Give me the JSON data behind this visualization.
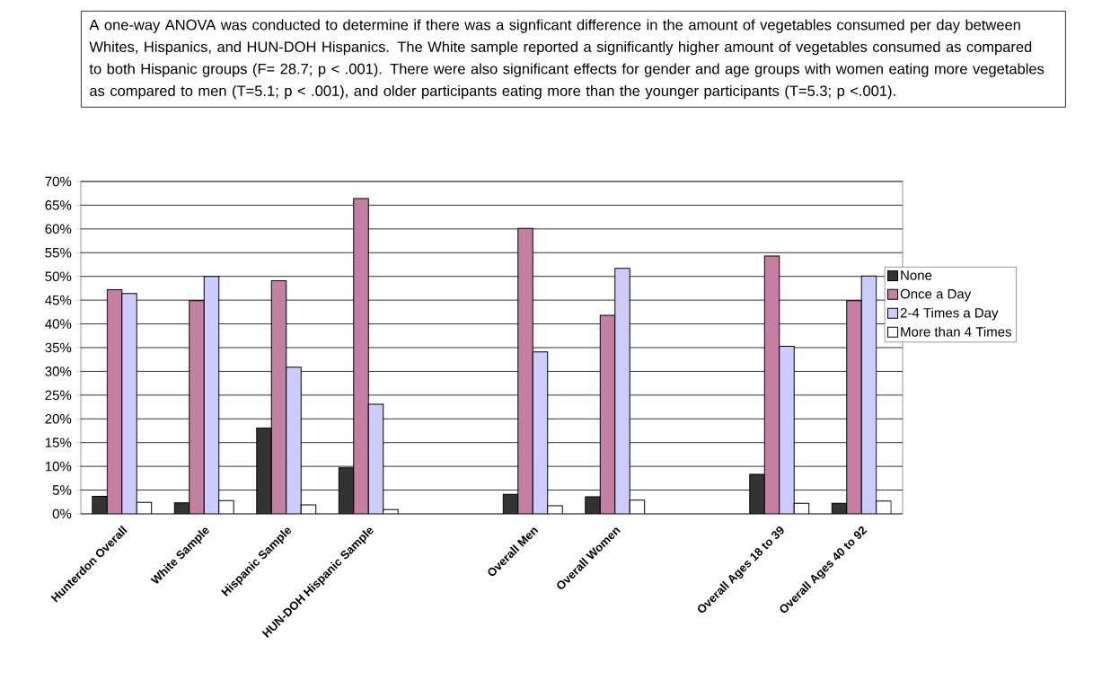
{
  "chart_data": {
    "type": "bar",
    "annotations": [
      "A one-way ANOVA was conducted to determine if there was a signficant difference in the amount of vegetables consumed per day between Whites, Hispanics, and HUN-DOH Hispanics.  The White sample reported a significantly higher amount of vegetables consumed as compared to both Hispanic groups (F= 28.7; p < .001).  There were also significant effects for gender and age groups with women eating more vegetables as compared to men (T=5.1; p < .001), and older participants eating more than the younger participants (T=5.3; p <.001)."
    ],
    "categories": [
      "Hunterdon Overall",
      "White Sample",
      "Hispanic Sample",
      "HUN-DOH Hispanic Sample",
      null,
      "Overall Men",
      "Overall Women",
      null,
      "Overall Ages 18 to 39",
      "Overall Ages 40 to 92"
    ],
    "series": [
      {
        "name": "None",
        "color": "#333333",
        "values": [
          3.7,
          2.3,
          18.1,
          9.7,
          null,
          4.1,
          3.6,
          null,
          8.3,
          2.2
        ]
      },
      {
        "name": "Once a Day",
        "color": "#c47fa2",
        "values": [
          47.2,
          44.9,
          49.1,
          66.4,
          null,
          60.1,
          41.8,
          null,
          54.3,
          44.9
        ]
      },
      {
        "name": "2-4 Times a Day",
        "color": "#ccccff",
        "values": [
          46.4,
          50.0,
          30.9,
          23.1,
          null,
          34.1,
          51.7,
          null,
          35.3,
          50.1
        ]
      },
      {
        "name": "More than 4 Times",
        "color": "#ffffff",
        "values": [
          2.4,
          2.8,
          1.9,
          0.9,
          null,
          1.7,
          2.9,
          null,
          2.2,
          2.7
        ]
      }
    ],
    "ylim": [
      0,
      70
    ],
    "yticks": [
      {
        "value": 0,
        "label": "0%"
      },
      {
        "value": 5,
        "label": "5%"
      },
      {
        "value": 10,
        "label": "10%"
      },
      {
        "value": 15,
        "label": "15%"
      },
      {
        "value": 20,
        "label": "20%"
      },
      {
        "value": 25,
        "label": "25%"
      },
      {
        "value": 30,
        "label": "30%"
      },
      {
        "value": 35,
        "label": "35%"
      },
      {
        "value": 40,
        "label": "40%"
      },
      {
        "value": 45,
        "label": "45%"
      },
      {
        "value": 50,
        "label": "50%"
      },
      {
        "value": 55,
        "label": "55%"
      },
      {
        "value": 60,
        "label": "60%"
      },
      {
        "value": 65,
        "label": "65%"
      },
      {
        "value": 70,
        "label": "70%"
      }
    ],
    "grid": "y",
    "legend": "right"
  }
}
